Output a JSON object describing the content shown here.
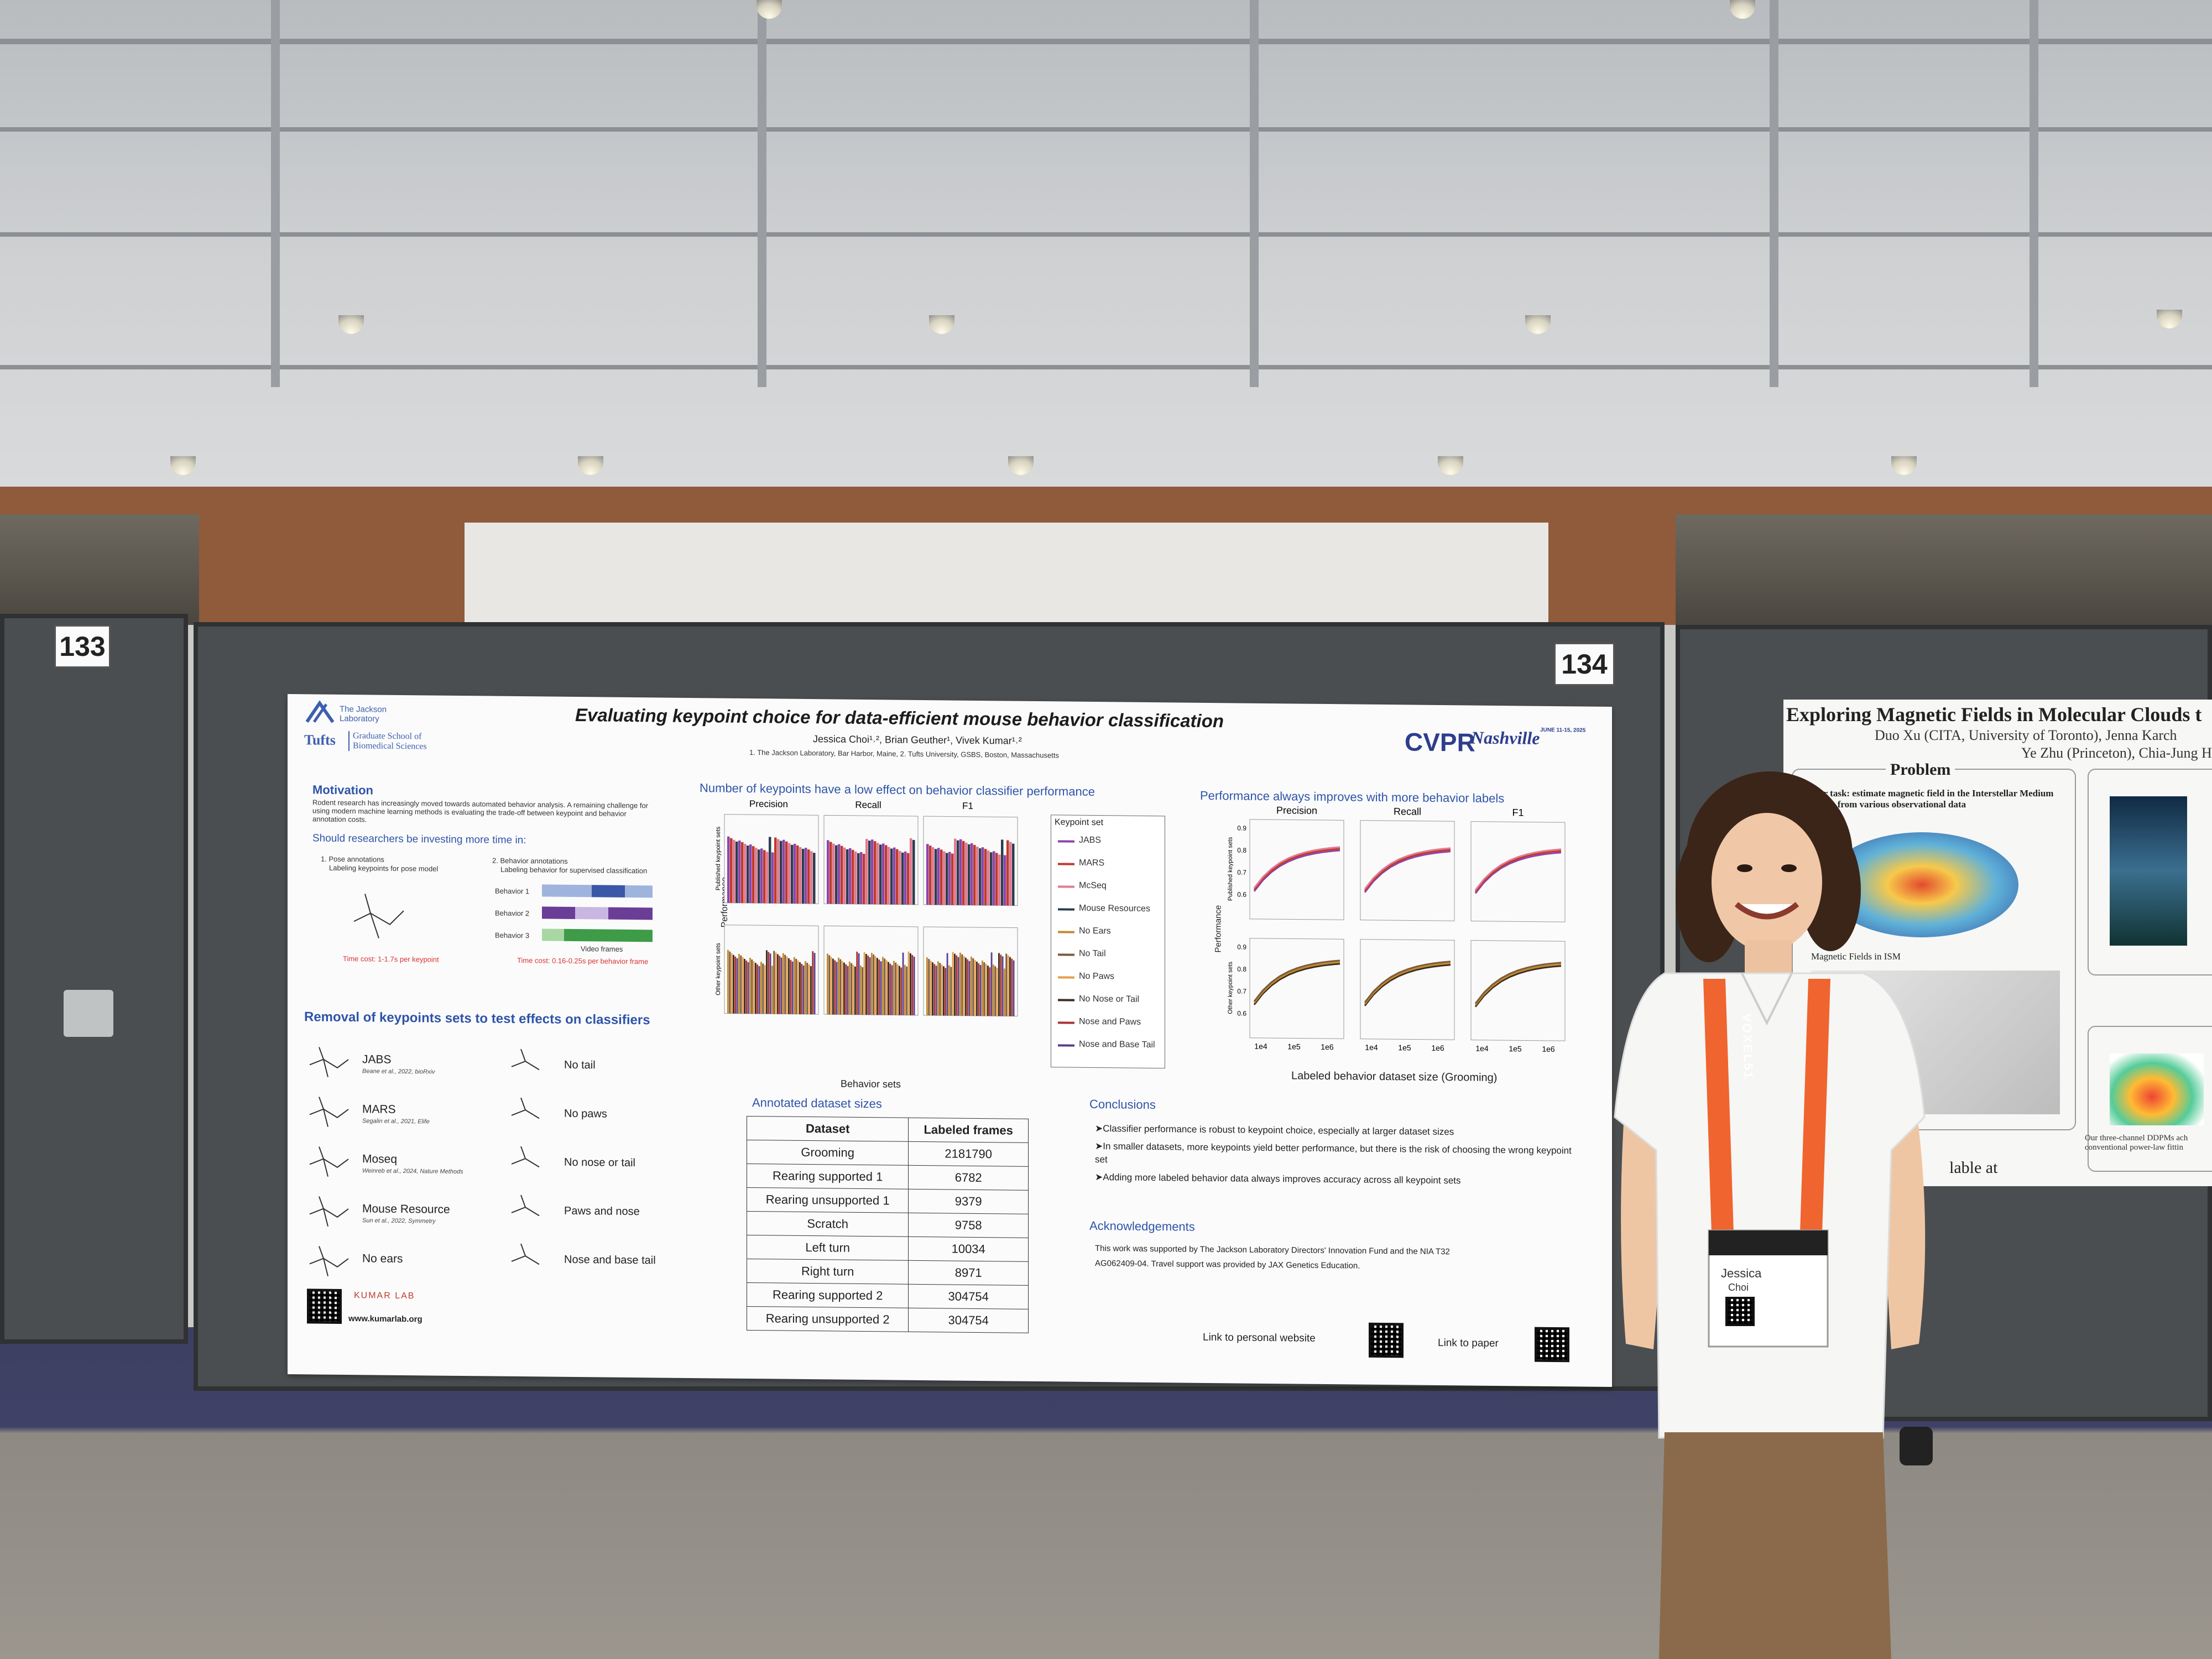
{
  "board_numbers": {
    "left": "133",
    "center": "134"
  },
  "poster": {
    "title": "Evaluating keypoint choice for data-efficient mouse behavior classification",
    "authors": "Jessica Choi¹˒², Brian Geuther¹, Vivek Kumar¹˒²",
    "affiliations": "1. The Jackson Laboratory, Bar Harbor, Maine, 2. Tufts University, GSBS, Boston, Massachusetts",
    "logos": {
      "jax": "The Jackson Laboratory",
      "tufts": "Tufts",
      "tufts_school": "Graduate School of Biomedical Sciences",
      "cvpr": "CVPR",
      "cvpr_city": "Nashville",
      "cvpr_dates": "JUNE 11-15, 2025"
    },
    "motivation": {
      "heading": "Motivation",
      "text": "Rodent research has increasingly moved towards automated behavior analysis. A remaining challenge for using modern machine learning methods is evaluating the trade-off between keypoint and behavior annotation costs.",
      "question": "Should researchers be investing more time in:",
      "option1_title": "1. Pose annotations",
      "option1_sub": "Labeling keypoints for pose model",
      "option1_cost": "Time cost: 1-1.7s per keypoint",
      "option2_title": "2. Behavior annotations",
      "option2_sub": "Labeling behavior for supervised classification",
      "option2_cost": "Time cost: 0.16-0.25s per behavior frame",
      "behavior_rows": [
        "Behavior 1",
        "Behavior 2",
        "Behavior 3"
      ],
      "video_frames_label": "Video frames"
    },
    "removal": {
      "heading": "Removal of keypoints sets to test effects on classifiers",
      "left_sets": [
        {
          "name": "JABS",
          "cite": "Beane et al., 2022, bioRxiv"
        },
        {
          "name": "MARS",
          "cite": "Segalin et al., 2021, Elife"
        },
        {
          "name": "Moseq",
          "cite": "Weinreb et al., 2024, Nature Methods"
        },
        {
          "name": "Mouse Resource",
          "cite": "Sun et al., 2022, Symmetry"
        },
        {
          "name": "No ears",
          "cite": ""
        }
      ],
      "right_sets": [
        "No tail",
        "No paws",
        "No nose or tail",
        "Paws and nose",
        "Nose and base tail"
      ]
    },
    "classifier_chart": {
      "heading": "Number of keypoints have a low effect on behavior classifier performance",
      "columns": [
        "Precision",
        "Recall",
        "F1"
      ],
      "ylabel": "Performance",
      "row_labels": [
        "Published keypoint sets",
        "Other keypoint sets"
      ],
      "xlabel": "Behavior sets",
      "legend_title": "Keypoint set",
      "legend": [
        "JABS",
        "MARS",
        "McSeq",
        "Mouse Resources",
        "No Ears",
        "No Tail",
        "No Paws",
        "No Nose or Tail",
        "Nose and Paws",
        "Nose and Base Tail"
      ]
    },
    "dataset_sizes": {
      "heading": "Annotated dataset sizes",
      "columns": [
        "Dataset",
        "Labeled frames"
      ],
      "rows": [
        [
          "Grooming",
          "2181790"
        ],
        [
          "Rearing supported 1",
          "6782"
        ],
        [
          "Rearing unsupported 1",
          "9379"
        ],
        [
          "Scratch",
          "9758"
        ],
        [
          "Left turn",
          "10034"
        ],
        [
          "Right turn",
          "8971"
        ],
        [
          "Rearing supported 2",
          "304754"
        ],
        [
          "Rearing unsupported 2",
          "304754"
        ]
      ]
    },
    "performance_chart": {
      "heading": "Performance always improves with more behavior labels",
      "columns": [
        "Precision",
        "Recall",
        "F1"
      ],
      "ylabel": "Performance",
      "row_labels": [
        "Published keypoint sets",
        "Other keypoint sets"
      ],
      "yticks": [
        "0.9",
        "0.8",
        "0.7",
        "0.6"
      ],
      "xticks": [
        "1e4",
        "1e5",
        "1e6"
      ],
      "xlabel": "Labeled behavior dataset size (Grooming)"
    },
    "conclusions": {
      "heading": "Conclusions",
      "items": [
        "➤Classifier performance is robust to keypoint choice, especially at larger dataset sizes",
        "➤In smaller datasets, more keypoints yield better performance, but there is the risk of choosing the wrong keypoint set",
        "➤Adding more labeled behavior data always improves accuracy across all keypoint sets"
      ]
    },
    "acknowledgements": {
      "heading": "Acknowledgements",
      "text": "This work was supported by The Jackson Laboratory Directors' Innovation Fund and the NIA T32 AG062409-04. Travel support was provided by JAX Genetics Education."
    },
    "footer": {
      "kumar_lab": "KUMAR LAB",
      "kumar_url": "www.kumarlab.org",
      "personal_site": "Link to personal website",
      "paper": "Link to paper"
    }
  },
  "right_poster": {
    "title": "Exploring Magnetic Fields in Molecular Clouds t",
    "authors_line1": "Duo Xu (CITA, University of Toronto), Jenna Karch",
    "authors_line2": "Ye Zhu (Princeton), Chia-Jung Hsu (Ch",
    "problem_heading": "Problem",
    "problem_text": "Our task: estimate magnetic field in the Interstellar Medium (ISM) from various observational data",
    "subtitle": "Magnetic Fields in ISM",
    "footer_text": "Our three-channel DDPMs ach conventional power-law fittin",
    "bottom_text": "lable at"
  },
  "badge": {
    "lanyard": "VOXEL51",
    "name": "Jessica",
    "surname": "Choi"
  },
  "colors": {
    "poster_heading": "#2e54a8",
    "board": "#4b4e50",
    "wall_wood": "#8f5b3a",
    "carpet": "#3d3f62",
    "lanyard": "#f0642f"
  }
}
